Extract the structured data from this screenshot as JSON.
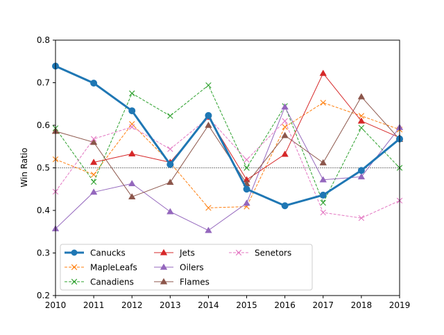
{
  "chart_data": {
    "type": "line",
    "title": "",
    "xlabel": "",
    "ylabel": "Win Ratio",
    "x": [
      2010,
      2011,
      2012,
      2013,
      2014,
      2015,
      2016,
      2017,
      2018,
      2019
    ],
    "xlim": [
      2010,
      2019
    ],
    "ylim": [
      0.2,
      0.8
    ],
    "xticks": [
      "2010",
      "2011",
      "2012",
      "2013",
      "2014",
      "2015",
      "2016",
      "2017",
      "2018",
      "2019"
    ],
    "yticks": [
      "0.2",
      "0.3",
      "0.4",
      "0.5",
      "0.6",
      "0.7",
      "0.8"
    ],
    "reference_line": 0.5,
    "grid": false,
    "legend_position": "lower-left",
    "series": [
      {
        "name": "Canucks",
        "color": "#1f77b4",
        "marker": "circle",
        "style": "solid-thick",
        "values": [
          0.739,
          0.699,
          0.634,
          0.508,
          0.623,
          0.45,
          0.411,
          0.436,
          0.494,
          0.568
        ]
      },
      {
        "name": "MapleLeafs",
        "color": "#ff7f0e",
        "marker": "x",
        "style": "dashed",
        "values": [
          0.52,
          0.484,
          0.603,
          0.512,
          0.406,
          0.409,
          0.596,
          0.653,
          0.622,
          0.59
        ]
      },
      {
        "name": "Canadiens",
        "color": "#2ca02c",
        "marker": "x",
        "style": "dashed",
        "values": [
          0.593,
          0.467,
          0.675,
          0.622,
          0.694,
          0.5,
          0.645,
          0.418,
          0.594,
          0.5
        ]
      },
      {
        "name": "Jets",
        "color": "#d62728",
        "marker": "triangle",
        "style": "solid",
        "values": [
          null,
          0.513,
          0.533,
          0.513,
          0.619,
          0.472,
          0.532,
          0.722,
          0.61,
          0.571
        ]
      },
      {
        "name": "Oilers",
        "color": "#9467bd",
        "marker": "triangle",
        "style": "solid",
        "values": [
          0.357,
          0.443,
          0.463,
          0.397,
          0.353,
          0.417,
          0.643,
          0.472,
          0.479,
          0.595
        ]
      },
      {
        "name": "Flames",
        "color": "#8c564b",
        "marker": "triangle",
        "style": "solid",
        "values": [
          0.586,
          0.56,
          0.432,
          0.466,
          0.6,
          0.463,
          0.576,
          0.512,
          0.667,
          0.567
        ]
      },
      {
        "name": "Senetors",
        "color": "#e377c2",
        "marker": "x",
        "style": "dashed",
        "values": [
          0.444,
          0.568,
          0.596,
          0.544,
          0.618,
          0.519,
          0.61,
          0.395,
          0.382,
          0.423
        ]
      }
    ]
  }
}
